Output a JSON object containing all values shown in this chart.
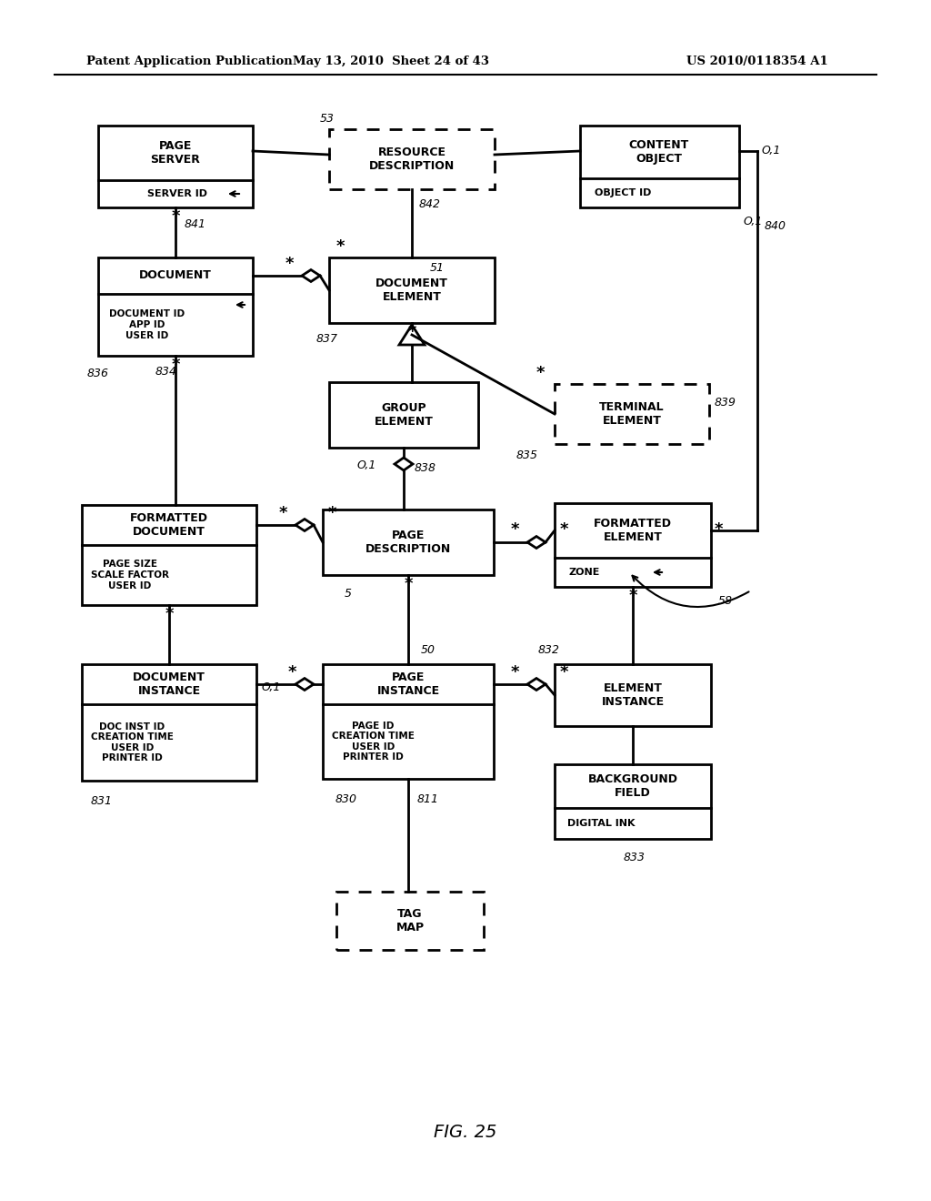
{
  "header_left": "Patent Application Publication",
  "header_mid": "May 13, 2010  Sheet 24 of 43",
  "header_right": "US 2010/0118354 A1",
  "figure_label": "FIG. 25"
}
